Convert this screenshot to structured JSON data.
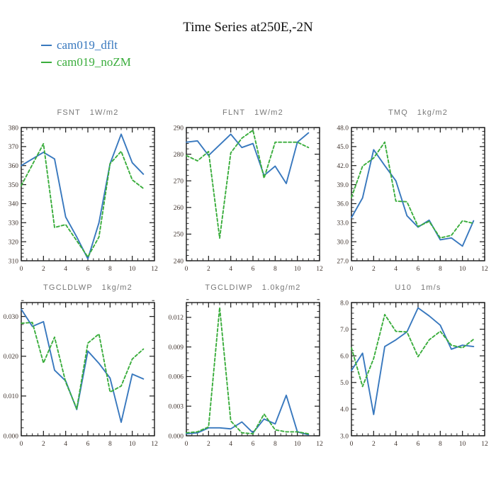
{
  "page_title": "Time Series at250E,-2N",
  "colors": {
    "dflt_line": "#3878be",
    "noZM_line": "#3aad3c",
    "frame": "#1a1a1a",
    "tick_label": "#40342e",
    "subplot_title": "#787878"
  },
  "legend": {
    "items": [
      {
        "label": "cam019_dflt",
        "color": "#3878be"
      },
      {
        "label": "cam019_noZM",
        "color": "#3aad3c"
      }
    ]
  },
  "axes": {
    "x": {
      "min": 0,
      "max": 12,
      "ticks": [
        0,
        2,
        4,
        6,
        8,
        10,
        12
      ],
      "tick_labels": [
        "0",
        "2",
        "4",
        "6",
        "8",
        "10",
        "12"
      ],
      "minor_step": 0.5
    }
  },
  "chart_data": [
    {
      "type": "line",
      "title": "FSNT",
      "unit": "1W/m2",
      "ylim": [
        310,
        380
      ],
      "yticks": [
        310,
        320,
        330,
        340,
        350,
        360,
        370,
        380
      ],
      "ytick_labels": [
        "310",
        "320",
        "330",
        "340",
        "350",
        "360",
        "370",
        "380"
      ],
      "y_minor_step": 2,
      "x": [
        0,
        1,
        2,
        3,
        4,
        5,
        6,
        7,
        8,
        9,
        10,
        11
      ],
      "series": [
        {
          "name": "cam019_dflt",
          "color": "#3878be",
          "style": "solid",
          "values": [
            360,
            363.5,
            367,
            363.5,
            333,
            322.5,
            311,
            330,
            361,
            376.5,
            361.5,
            355.5
          ]
        },
        {
          "name": "cam019_noZM",
          "color": "#3aad3c",
          "style": "dashed",
          "values": [
            349.5,
            360.5,
            371.5,
            327.5,
            329,
            320.5,
            312,
            322.5,
            361,
            367.5,
            352.5,
            348
          ]
        }
      ]
    },
    {
      "type": "line",
      "title": "FLNT",
      "unit": "1W/m2",
      "ylim": [
        240,
        290
      ],
      "yticks": [
        240,
        250,
        260,
        270,
        280,
        290
      ],
      "ytick_labels": [
        "240",
        "250",
        "260",
        "270",
        "280",
        "290"
      ],
      "y_minor_step": 2,
      "x": [
        0,
        1,
        2,
        3,
        4,
        5,
        6,
        7,
        8,
        9,
        10,
        11
      ],
      "series": [
        {
          "name": "cam019_dflt",
          "color": "#3878be",
          "style": "solid",
          "values": [
            284.5,
            285,
            279.5,
            283.5,
            287.5,
            282.5,
            284,
            272,
            275.5,
            269,
            284.5,
            288
          ]
        },
        {
          "name": "cam019_noZM",
          "color": "#3aad3c",
          "style": "dashed",
          "values": [
            279.5,
            277.5,
            281,
            248.5,
            280.5,
            286,
            289,
            271,
            284.5,
            284.5,
            284.5,
            282.5
          ]
        }
      ]
    },
    {
      "type": "line",
      "title": "TMQ",
      "unit": "1kg/m2",
      "ylim": [
        27.0,
        48.0
      ],
      "yticks": [
        27,
        30,
        33,
        36,
        39,
        42,
        45,
        48
      ],
      "ytick_labels": [
        "27.0",
        "30.0",
        "33.0",
        "36.0",
        "39.0",
        "42.0",
        "45.0",
        "48.0"
      ],
      "y_minor_step": 0.6,
      "x": [
        0,
        1,
        2,
        3,
        4,
        5,
        6,
        7,
        8,
        9,
        10,
        11
      ],
      "series": [
        {
          "name": "cam019_dflt",
          "color": "#3878be",
          "style": "solid",
          "values": [
            33.8,
            36.9,
            44.5,
            42.0,
            39.6,
            34.1,
            32.3,
            33.4,
            30.3,
            30.6,
            29.3,
            33.3
          ]
        },
        {
          "name": "cam019_noZM",
          "color": "#3aad3c",
          "style": "dashed",
          "values": [
            37.0,
            41.9,
            43.2,
            45.7,
            36.4,
            36.3,
            32.4,
            33.2,
            30.6,
            31.0,
            33.3,
            32.9
          ]
        }
      ]
    },
    {
      "type": "line",
      "title": "TGCLDLWP",
      "unit": "1kg/m2",
      "ylim": [
        0.0,
        0.0335
      ],
      "yticks": [
        0.0,
        0.01,
        0.02,
        0.03
      ],
      "ytick_labels": [
        "0.000",
        "0.010",
        "0.020",
        "0.030"
      ],
      "y_minor_step": 0.002,
      "x": [
        0,
        1,
        2,
        3,
        4,
        5,
        6,
        7,
        8,
        9,
        10,
        11
      ],
      "series": [
        {
          "name": "cam019_dflt",
          "color": "#3878be",
          "style": "solid",
          "values": [
            0.0318,
            0.0275,
            0.0287,
            0.0165,
            0.0138,
            0.0066,
            0.0213,
            0.0182,
            0.0145,
            0.0034,
            0.0155,
            0.0143
          ]
        },
        {
          "name": "cam019_noZM",
          "color": "#3aad3c",
          "style": "dashed",
          "values": [
            0.0283,
            0.0285,
            0.0183,
            0.0248,
            0.0135,
            0.0068,
            0.0233,
            0.0256,
            0.011,
            0.0125,
            0.0193,
            0.0218
          ]
        }
      ]
    },
    {
      "type": "line",
      "title": "TGCLDIWP",
      "unit": "1.0kg/m2",
      "ylim": [
        0.0,
        0.0135
      ],
      "yticks": [
        0.0,
        0.003,
        0.006,
        0.009,
        0.012
      ],
      "ytick_labels": [
        "0.000",
        "0.003",
        "0.006",
        "0.009",
        "0.012"
      ],
      "y_minor_step": 0.0006,
      "x": [
        0,
        1,
        2,
        3,
        4,
        5,
        6,
        7,
        8,
        9,
        10,
        11
      ],
      "series": [
        {
          "name": "cam019_dflt",
          "color": "#3878be",
          "style": "solid",
          "values": [
            0.0002,
            0.0003,
            0.0008,
            0.0008,
            0.0007,
            0.0014,
            0.0003,
            0.0017,
            0.0012,
            0.0041,
            0.0004,
            0.0001
          ]
        },
        {
          "name": "cam019_noZM",
          "color": "#3aad3c",
          "style": "dashed",
          "values": [
            0.0003,
            0.0004,
            0.0009,
            0.013,
            0.0015,
            0.0003,
            0.0002,
            0.0022,
            0.0006,
            0.0004,
            0.0004,
            0.0002
          ]
        }
      ]
    },
    {
      "type": "line",
      "title": "U10",
      "unit": "1m/s",
      "ylim": [
        3.0,
        8.0
      ],
      "yticks": [
        3,
        4,
        5,
        6,
        7,
        8
      ],
      "ytick_labels": [
        "3.0",
        "4.0",
        "5.0",
        "6.0",
        "7.0",
        "8.0"
      ],
      "y_minor_step": 0.2,
      "x": [
        0,
        1,
        2,
        3,
        4,
        5,
        6,
        7,
        8,
        9,
        10,
        11
      ],
      "series": [
        {
          "name": "cam019_dflt",
          "color": "#3878be",
          "style": "solid",
          "values": [
            5.45,
            6.1,
            3.8,
            6.35,
            6.6,
            6.9,
            7.8,
            7.5,
            7.15,
            6.25,
            6.4,
            6.35
          ]
        },
        {
          "name": "cam019_noZM",
          "color": "#3aad3c",
          "style": "dashed",
          "values": [
            6.3,
            4.85,
            5.9,
            7.55,
            6.92,
            6.9,
            5.97,
            6.6,
            6.92,
            6.4,
            6.3,
            6.62
          ]
        }
      ]
    }
  ]
}
